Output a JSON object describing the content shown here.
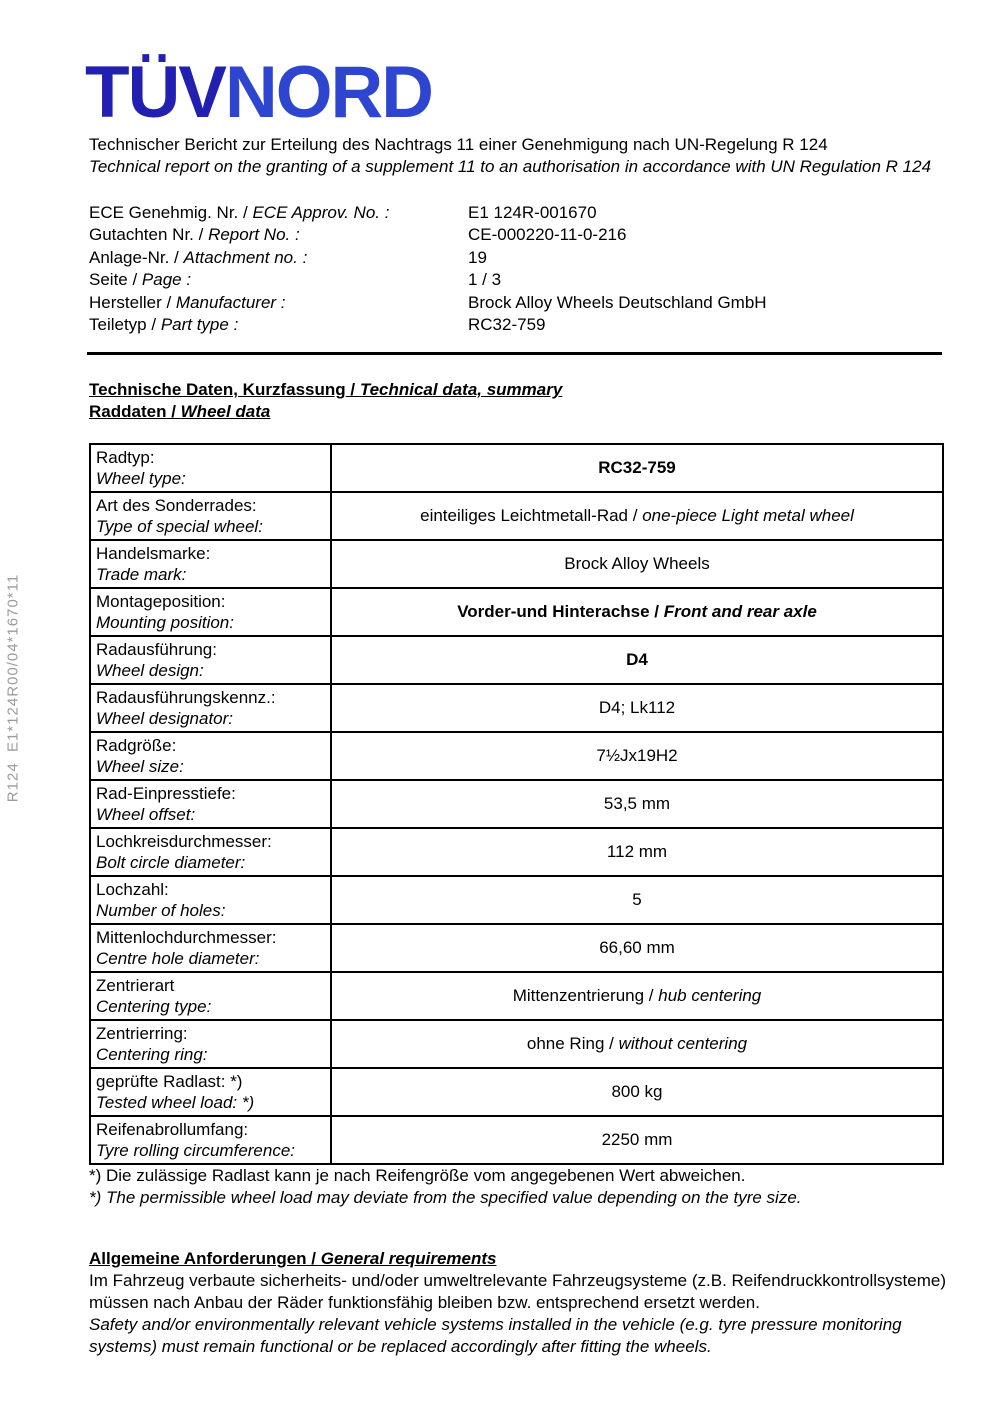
{
  "logo": {
    "tuv": "TÜV",
    "nord": "NORD"
  },
  "colors": {
    "logo_tuv_blue": "#2220b0",
    "logo_nord_blue": "#2e46cf",
    "reference_gray": "#9b9b9b",
    "text": "#000000",
    "background": "#ffffff"
  },
  "intro": {
    "de": "Technischer Bericht zur Erteilung des Nachtrags 11 einer Genehmigung nach UN-Regelung R 124",
    "en": "Technical report on the granting of a supplement 11 to an authorisation in accordance with UN Regulation R 124"
  },
  "meta": {
    "rows": [
      {
        "de": "ECE Genehmig. Nr.",
        "sep": " / ",
        "en": "ECE Approv. No. :",
        "value": "E1 124R-001670"
      },
      {
        "de": "Gutachten Nr.",
        "sep": " / ",
        "en": "Report No. :",
        "value": "CE-000220-11-0-216"
      },
      {
        "de": "Anlage-Nr.",
        "sep": " / ",
        "en": "Attachment no. :",
        "value": "19"
      },
      {
        "de": "Seite",
        "sep": " / ",
        "en": "Page :",
        "value": "1 / 3"
      },
      {
        "de": "Hersteller",
        "sep": " / ",
        "en": "Manufacturer :",
        "value": "Brock Alloy Wheels Deutschland GmbH"
      },
      {
        "de": "Teiletyp",
        "sep": " / ",
        "en": "Part type :",
        "value": "RC32-759"
      }
    ]
  },
  "headings": {
    "tech": {
      "de": "Technische Daten, Kurzfassung",
      "sep": " / ",
      "en": "Technical data, summary"
    },
    "rad": {
      "de": "Raddaten",
      "sep": " / ",
      "en": "Wheel data"
    }
  },
  "table": {
    "rows": [
      {
        "label_de": "Radtyp:",
        "label_en": "Wheel type:",
        "value_de": "RC32-759"
      },
      {
        "label_de": "Art des Sonderrades:",
        "label_en": "Type of special wheel:",
        "value_de": "einteiliges Leichtmetall-Rad",
        "sep": " / ",
        "value_en": "one-piece Light metal wheel"
      },
      {
        "label_de": "Handelsmarke:",
        "label_en": "Trade mark:",
        "value_de": "Brock Alloy Wheels"
      },
      {
        "label_de": "Montageposition:",
        "label_en": "Mounting position:",
        "value_de": "Vorder-und Hinterachse",
        "sep": " / ",
        "value_en": "Front and rear axle"
      },
      {
        "label_de": "Radausführung:",
        "label_en": "Wheel design:",
        "value_de": "D4"
      },
      {
        "label_de": "Radausführungskennz.:",
        "label_en": "Wheel designator:",
        "value_de": "D4; Lk112"
      },
      {
        "label_de": "Radgröße:",
        "label_en": "Wheel size:",
        "value_de": "7½Jx19H2"
      },
      {
        "label_de": "Rad-Einpresstiefe:",
        "label_en": "Wheel offset:",
        "value_de": "53,5 mm"
      },
      {
        "label_de": "Lochkreisdurchmesser:",
        "label_en": "Bolt circle diameter:",
        "value_de": "112 mm"
      },
      {
        "label_de": "Lochzahl:",
        "label_en": "Number of holes:",
        "value_de": "5"
      },
      {
        "label_de": "Mittenlochdurchmesser:",
        "label_en": "Centre hole diameter:",
        "value_de": "66,60 mm"
      },
      {
        "label_de": "Zentrierart",
        "label_en": "Centering type:",
        "value_de": "Mittenzentrierung",
        "sep": " / ",
        "value_en": "hub centering"
      },
      {
        "label_de": "Zentrierring:",
        "label_en": "Centering ring:",
        "value_de": "ohne Ring",
        "sep": " / ",
        "value_en": "without centering"
      },
      {
        "label_de": "geprüfte Radlast: *)",
        "label_en": "Tested wheel load: *)",
        "value_de": "800 kg"
      },
      {
        "label_de": "Reifenabrollumfang:",
        "label_en": "Tyre rolling circumference:",
        "value_de": "2250 mm"
      }
    ]
  },
  "footnotes": {
    "de": "*) Die zulässige Radlast kann je nach Reifengröße vom angegebenen Wert abweichen.",
    "en": "*) The permissible wheel load may deviate from the specified value depending on the tyre size."
  },
  "general": {
    "heading": {
      "de": "Allgemeine Anforderungen",
      "sep": " / ",
      "en": "General requirements"
    },
    "text_de": "Im Fahrzeug verbaute sicherheits- und/oder umweltrelevante Fahrzeugsysteme (z.B. Reifendruckkontrollsysteme) müssen nach Anbau der Räder funktionsfähig bleiben bzw. entsprechend ersetzt werden.",
    "text_en": "Safety and/or environmentally relevant vehicle systems installed in the vehicle (e.g. tyre pressure monitoring systems) must remain functional or be replaced accordingly after fitting the wheels."
  },
  "sidebar": {
    "reference": "R124  E1*124R00/04*1670*11"
  }
}
